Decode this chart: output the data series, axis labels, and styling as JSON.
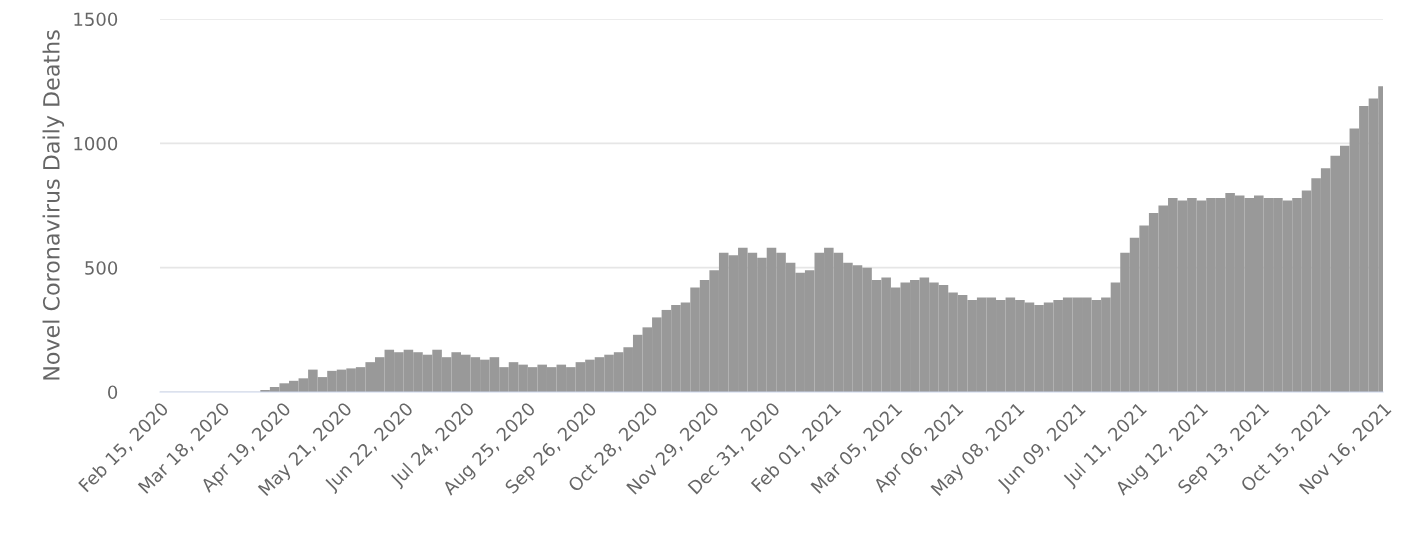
{
  "chart_data": {
    "type": "bar",
    "ylabel": "Novel Coronavirus Daily Deaths",
    "x": [
      "2020-02-15",
      "2020-02-20",
      "2020-02-25",
      "2020-03-01",
      "2020-03-06",
      "2020-03-11",
      "2020-03-16",
      "2020-03-21",
      "2020-03-26",
      "2020-03-31",
      "2020-04-05",
      "2020-04-10",
      "2020-04-15",
      "2020-04-20",
      "2020-04-25",
      "2020-04-30",
      "2020-05-05",
      "2020-05-10",
      "2020-05-15",
      "2020-05-20",
      "2020-05-25",
      "2020-05-30",
      "2020-06-04",
      "2020-06-09",
      "2020-06-14",
      "2020-06-19",
      "2020-06-24",
      "2020-06-29",
      "2020-07-04",
      "2020-07-09",
      "2020-07-14",
      "2020-07-19",
      "2020-07-24",
      "2020-07-29",
      "2020-08-03",
      "2020-08-08",
      "2020-08-13",
      "2020-08-18",
      "2020-08-23",
      "2020-08-28",
      "2020-09-02",
      "2020-09-07",
      "2020-09-12",
      "2020-09-17",
      "2020-09-22",
      "2020-09-27",
      "2020-10-02",
      "2020-10-07",
      "2020-10-12",
      "2020-10-17",
      "2020-10-22",
      "2020-10-27",
      "2020-11-01",
      "2020-11-06",
      "2020-11-11",
      "2020-11-16",
      "2020-11-21",
      "2020-11-26",
      "2020-12-01",
      "2020-12-06",
      "2020-12-11",
      "2020-12-16",
      "2020-12-21",
      "2020-12-26",
      "2020-12-31",
      "2021-01-05",
      "2021-01-10",
      "2021-01-15",
      "2021-01-20",
      "2021-01-25",
      "2021-01-30",
      "2021-02-04",
      "2021-02-09",
      "2021-02-14",
      "2021-02-19",
      "2021-02-24",
      "2021-03-01",
      "2021-03-06",
      "2021-03-11",
      "2021-03-16",
      "2021-03-21",
      "2021-03-26",
      "2021-03-31",
      "2021-04-05",
      "2021-04-10",
      "2021-04-15",
      "2021-04-20",
      "2021-04-25",
      "2021-04-30",
      "2021-05-05",
      "2021-05-10",
      "2021-05-15",
      "2021-05-20",
      "2021-05-25",
      "2021-05-30",
      "2021-06-04",
      "2021-06-09",
      "2021-06-14",
      "2021-06-19",
      "2021-06-24",
      "2021-06-29",
      "2021-07-04",
      "2021-07-09",
      "2021-07-14",
      "2021-07-19",
      "2021-07-24",
      "2021-07-29",
      "2021-08-03",
      "2021-08-08",
      "2021-08-13",
      "2021-08-18",
      "2021-08-23",
      "2021-08-28",
      "2021-09-02",
      "2021-09-07",
      "2021-09-12",
      "2021-09-17",
      "2021-09-22",
      "2021-09-27",
      "2021-10-02",
      "2021-10-07",
      "2021-10-12",
      "2021-10-17",
      "2021-10-22",
      "2021-10-27",
      "2021-11-01",
      "2021-11-06",
      "2021-11-11",
      "2021-11-16"
    ],
    "series": [
      {
        "color": "#999999",
        "values": [
          0,
          0,
          0,
          0,
          0,
          0,
          0,
          0,
          0,
          0,
          0,
          8,
          20,
          35,
          45,
          55,
          90,
          60,
          85,
          90,
          95,
          100,
          120,
          140,
          170,
          160,
          170,
          160,
          150,
          170,
          140,
          160,
          150,
          140,
          130,
          140,
          100,
          120,
          110,
          100,
          110,
          100,
          110,
          100,
          120,
          130,
          140,
          150,
          160,
          180,
          230,
          260,
          300,
          330,
          350,
          360,
          420,
          450,
          490,
          560,
          550,
          580,
          560,
          540,
          580,
          560,
          520,
          480,
          490,
          560,
          580,
          560,
          520,
          510,
          500,
          450,
          460,
          420,
          440,
          450,
          460,
          440,
          430,
          400,
          390,
          370,
          380,
          380,
          370,
          380,
          370,
          360,
          350,
          360,
          370,
          380,
          380,
          380,
          370,
          380,
          440,
          560,
          620,
          670,
          720,
          750,
          780,
          770,
          780,
          770,
          780,
          780,
          800,
          790,
          780,
          790,
          780,
          780,
          770,
          780,
          810,
          860,
          900,
          950,
          990,
          1060,
          1150,
          1180,
          1230
        ]
      }
    ],
    "xlim": [
      "2020-02-15",
      "2021-11-16"
    ],
    "xticks": [
      {
        "value": "2020-02-15",
        "label": "Feb 15, 2020"
      },
      {
        "value": "2020-03-18",
        "label": "Mar 18, 2020"
      },
      {
        "value": "2020-04-19",
        "label": "Apr 19, 2020"
      },
      {
        "value": "2020-05-21",
        "label": "May 21, 2020"
      },
      {
        "value": "2020-06-22",
        "label": "Jun 22, 2020"
      },
      {
        "value": "2020-07-24",
        "label": "Jul 24, 2020"
      },
      {
        "value": "2020-08-25",
        "label": "Aug 25, 2020"
      },
      {
        "value": "2020-09-26",
        "label": "Sep 26, 2020"
      },
      {
        "value": "2020-10-28",
        "label": "Oct 28, 2020"
      },
      {
        "value": "2020-11-29",
        "label": "Nov 29, 2020"
      },
      {
        "value": "2020-12-31",
        "label": "Dec 31, 2020"
      },
      {
        "value": "2021-02-01",
        "label": "Feb 01, 2021"
      },
      {
        "value": "2021-03-05",
        "label": "Mar 05, 2021"
      },
      {
        "value": "2021-04-06",
        "label": "Apr 06, 2021"
      },
      {
        "value": "2021-05-08",
        "label": "May 08, 2021"
      },
      {
        "value": "2021-06-09",
        "label": "Jun 09, 2021"
      },
      {
        "value": "2021-07-11",
        "label": "Jul 11, 2021"
      },
      {
        "value": "2021-08-12",
        "label": "Aug 12, 2021"
      },
      {
        "value": "2021-09-13",
        "label": "Sep 13, 2021"
      },
      {
        "value": "2021-10-15",
        "label": "Oct 15, 2021"
      },
      {
        "value": "2021-11-16",
        "label": "Nov 16, 2021"
      }
    ],
    "ylim": [
      0,
      1500
    ],
    "yticks": [
      0,
      500,
      1000,
      1500
    ],
    "grid": "y"
  }
}
